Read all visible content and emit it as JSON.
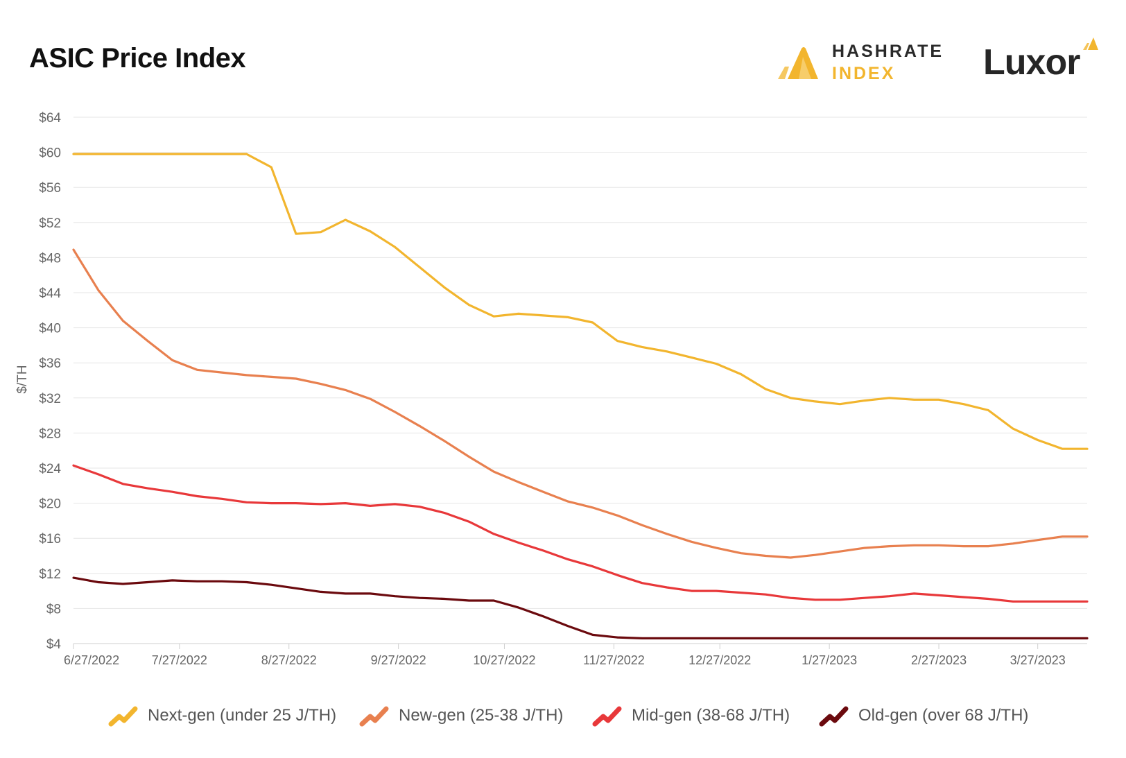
{
  "title": "ASIC Price Index",
  "brand_hashrate": {
    "line1": "HASHRATE",
    "line2": "INDEX",
    "icon": "hashrate-index-logo-icon"
  },
  "brand_luxor": {
    "word": "Luxor",
    "icon": "luxor-logo-mark-icon"
  },
  "chart_data": {
    "type": "line",
    "title": "ASIC Price Index",
    "xlabel": "",
    "ylabel": "$/TH",
    "ylim": [
      4,
      64
    ],
    "xlim": [
      "2022-06-27",
      "2023-04-10"
    ],
    "y_ticks": [
      4,
      8,
      12,
      16,
      20,
      24,
      28,
      32,
      36,
      40,
      44,
      48,
      52,
      56,
      60,
      64
    ],
    "y_tick_labels": [
      "$4",
      "$8",
      "$12",
      "$16",
      "$20",
      "$24",
      "$28",
      "$32",
      "$36",
      "$40",
      "$44",
      "$48",
      "$52",
      "$56",
      "$60",
      "$64"
    ],
    "x_ticks": [
      "2022-06-27",
      "2022-07-27",
      "2022-08-27",
      "2022-09-27",
      "2022-10-27",
      "2022-11-27",
      "2022-12-27",
      "2023-01-27",
      "2023-02-27",
      "2023-03-27"
    ],
    "x_tick_labels": [
      "6/27/2022",
      "7/27/2022",
      "8/27/2022",
      "9/27/2022",
      "10/27/2022",
      "11/27/2022",
      "12/27/2022",
      "1/27/2023",
      "2/27/2023",
      "3/27/2023"
    ],
    "grid": "horizontal",
    "legend": "bottom",
    "x": [
      "2022-06-27",
      "2022-07-04",
      "2022-07-11",
      "2022-07-18",
      "2022-07-25",
      "2022-08-01",
      "2022-08-08",
      "2022-08-15",
      "2022-08-22",
      "2022-08-29",
      "2022-09-05",
      "2022-09-12",
      "2022-09-19",
      "2022-09-26",
      "2022-10-03",
      "2022-10-10",
      "2022-10-17",
      "2022-10-24",
      "2022-10-31",
      "2022-11-07",
      "2022-11-14",
      "2022-11-21",
      "2022-11-28",
      "2022-12-05",
      "2022-12-12",
      "2022-12-19",
      "2022-12-26",
      "2023-01-02",
      "2023-01-09",
      "2023-01-16",
      "2023-01-23",
      "2023-01-30",
      "2023-02-06",
      "2023-02-13",
      "2023-02-20",
      "2023-02-27",
      "2023-03-06",
      "2023-03-13",
      "2023-03-20",
      "2023-03-27",
      "2023-04-03",
      "2023-04-10"
    ],
    "series": [
      {
        "name": "Next-gen (under 25 J/TH)",
        "color": "#f2b52e",
        "values": [
          59.8,
          59.8,
          59.8,
          59.8,
          59.8,
          59.8,
          59.8,
          59.8,
          58.3,
          50.7,
          50.9,
          52.3,
          51.0,
          49.2,
          46.9,
          44.6,
          42.6,
          41.3,
          41.6,
          41.4,
          41.2,
          40.6,
          38.5,
          37.8,
          37.3,
          36.6,
          35.9,
          34.7,
          33.0,
          32.0,
          31.6,
          31.3,
          31.7,
          32.0,
          31.8,
          31.8,
          31.3,
          30.6,
          28.5,
          27.2,
          26.2,
          26.2
        ]
      },
      {
        "name": "New-gen (25-38 J/TH)",
        "color": "#e8804f",
        "values": [
          48.9,
          44.3,
          40.8,
          38.5,
          36.3,
          35.2,
          34.9,
          34.6,
          34.4,
          34.2,
          33.6,
          32.9,
          31.9,
          30.4,
          28.8,
          27.1,
          25.3,
          23.6,
          22.4,
          21.3,
          20.2,
          19.5,
          18.6,
          17.5,
          16.5,
          15.6,
          14.9,
          14.3,
          14.0,
          13.8,
          14.1,
          14.5,
          14.9,
          15.1,
          15.2,
          15.2,
          15.1,
          15.1,
          15.4,
          15.8,
          16.2,
          16.2
        ]
      },
      {
        "name": "Mid-gen (38-68 J/TH)",
        "color": "#e8383a",
        "values": [
          24.3,
          23.3,
          22.2,
          21.7,
          21.3,
          20.8,
          20.5,
          20.1,
          20.0,
          20.0,
          19.9,
          20.0,
          19.7,
          19.9,
          19.6,
          18.9,
          17.9,
          16.5,
          15.5,
          14.6,
          13.6,
          12.8,
          11.8,
          10.9,
          10.4,
          10.0,
          10.0,
          9.8,
          9.6,
          9.2,
          9.0,
          9.0,
          9.2,
          9.4,
          9.7,
          9.5,
          9.3,
          9.1,
          8.8,
          8.8,
          8.8,
          8.8
        ]
      },
      {
        "name": "Old-gen (over 68 J/TH)",
        "color": "#6b0a0e",
        "values": [
          11.5,
          11.0,
          10.8,
          11.0,
          11.2,
          11.1,
          11.1,
          11.0,
          10.7,
          10.3,
          9.9,
          9.7,
          9.7,
          9.4,
          9.2,
          9.1,
          8.9,
          8.9,
          8.1,
          7.1,
          6.0,
          5.0,
          4.7,
          4.6,
          4.6,
          4.6,
          4.6,
          4.6,
          4.6,
          4.6,
          4.6,
          4.6,
          4.6,
          4.6,
          4.6,
          4.6,
          4.6,
          4.6,
          4.6,
          4.6,
          4.6,
          4.6
        ]
      }
    ]
  }
}
